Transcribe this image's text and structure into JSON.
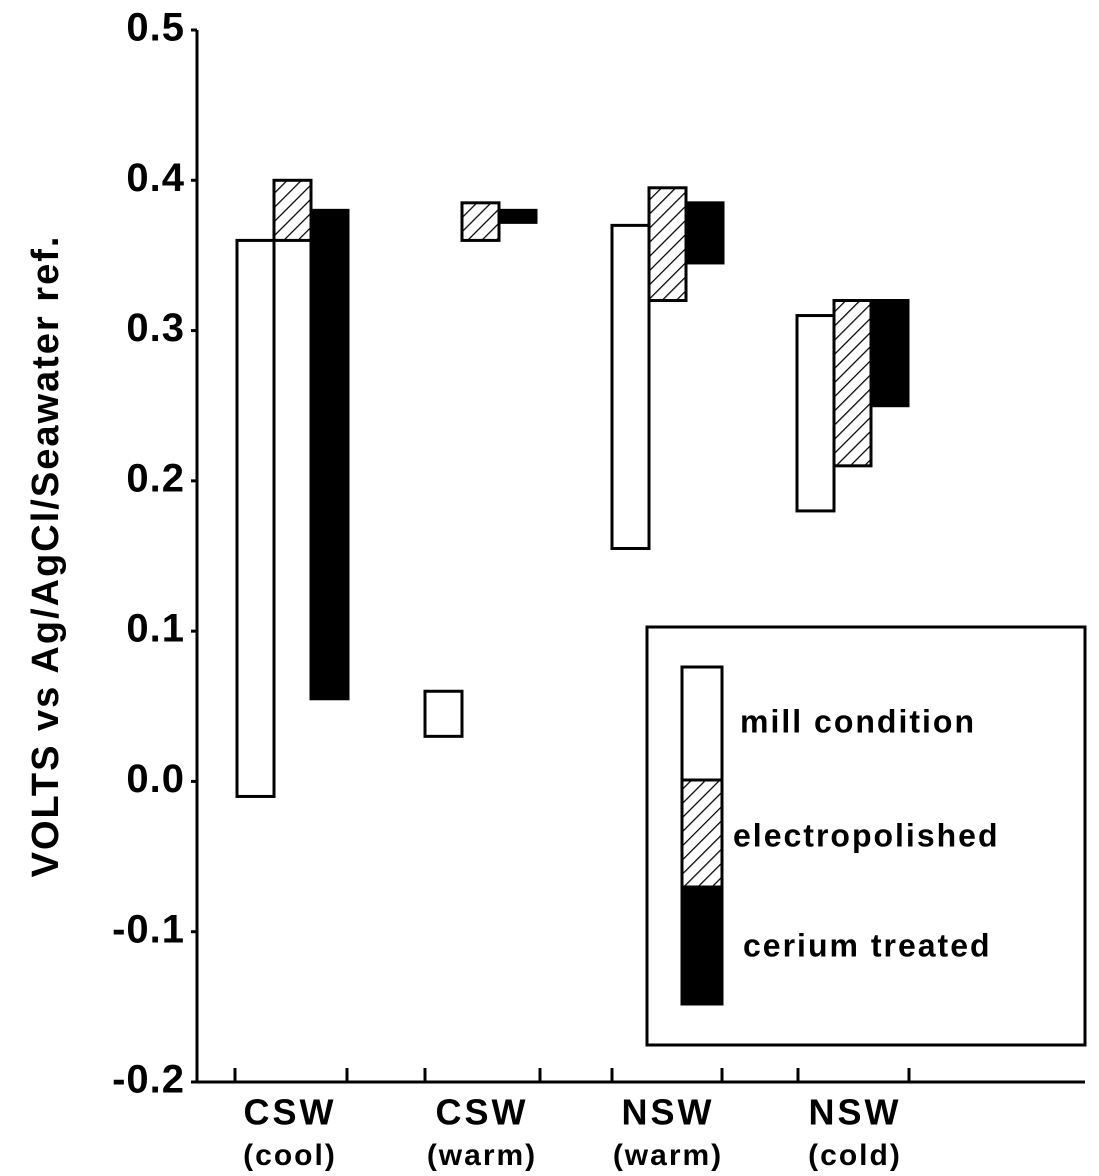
{
  "chart_data": {
    "type": "bar",
    "y_label": "VOLTS vs Ag/AgCl/Seawater ref.",
    "categories": [
      [
        "CSW",
        "(cool)"
      ],
      [
        "CSW",
        "(warm)"
      ],
      [
        "NSW",
        "(warm)"
      ],
      [
        "NSW",
        "(cold)"
      ]
    ],
    "series": [
      {
        "name": "mill condition",
        "color": "#ffffff",
        "hatch": false,
        "values": [
          [
            -0.01,
            0.36
          ],
          [
            0.03,
            0.06
          ],
          [
            0.155,
            0.37
          ],
          [
            0.18,
            0.31
          ]
        ]
      },
      {
        "name": "electropolished",
        "color": "#ffffff",
        "hatch": true,
        "values": [
          [
            0.36,
            0.4
          ],
          [
            0.36,
            0.385
          ],
          [
            0.32,
            0.395
          ],
          [
            0.21,
            0.32
          ]
        ]
      },
      {
        "name": "cerium treated",
        "color": "#000000",
        "hatch": false,
        "values": [
          [
            0.055,
            0.38
          ],
          [
            0.372,
            0.38
          ],
          [
            0.345,
            0.385
          ],
          [
            0.25,
            0.32
          ]
        ]
      }
    ],
    "ylim": [
      -0.2,
      0.5
    ],
    "yticks": [
      -0.2,
      -0.1,
      {
        "value": 0,
        "label": "0.0"
      },
      0.1,
      0.2,
      0.3,
      0.4,
      0.5
    ],
    "legend": "lower right"
  }
}
